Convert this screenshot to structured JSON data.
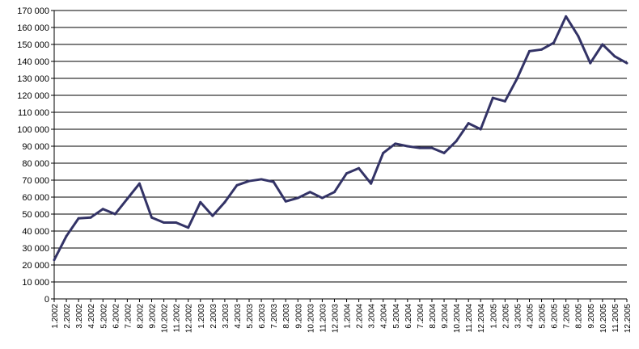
{
  "chart_data": {
    "type": "line",
    "title": "",
    "xlabel": "",
    "ylabel": "",
    "ylim": [
      0,
      170000
    ],
    "yticks": [
      0,
      10000,
      20000,
      30000,
      40000,
      50000,
      60000,
      70000,
      80000,
      90000,
      100000,
      110000,
      120000,
      130000,
      140000,
      150000,
      160000,
      170000
    ],
    "ytick_labels": [
      "0",
      "10 000",
      "20 000",
      "30 000",
      "40 000",
      "50 000",
      "60 000",
      "70 000",
      "80 000",
      "90 000",
      "100 000",
      "110 000",
      "120 000",
      "130 000",
      "140 000",
      "150 000",
      "160 000",
      "170 000"
    ],
    "grid": true,
    "line_color": "#333366",
    "categories": [
      "1.2002",
      "2.2002",
      "3.2002",
      "4.2002",
      "5.2002",
      "6.2002",
      "7.2002",
      "8.2002",
      "9.2002",
      "10.2002",
      "11.2002",
      "12.2002",
      "1.2003",
      "2.2003",
      "3.2003",
      "4.2003",
      "5.2003",
      "6.2003",
      "7.2003",
      "8.2003",
      "9.2003",
      "10.2003",
      "11.2003",
      "12.2003",
      "1.2004",
      "2.2004",
      "3.2004",
      "4.2004",
      "5.2004",
      "6.2004",
      "7.2004",
      "8.2004",
      "9.2004",
      "10.2004",
      "11.2004",
      "12.2004",
      "1.2005",
      "2.2005",
      "3.2005",
      "4.2005",
      "5.2005",
      "6.2005",
      "7.2005",
      "8.2005",
      "9.2005",
      "10.2005",
      "11.2005",
      "12.2005"
    ],
    "values": [
      23000,
      37000,
      47500,
      48000,
      53000,
      50000,
      59000,
      68000,
      48000,
      45000,
      45000,
      42000,
      57000,
      49000,
      57000,
      67000,
      69500,
      70500,
      69000,
      57500,
      59500,
      63000,
      59500,
      63000,
      74000,
      77000,
      68000,
      86000,
      91500,
      90000,
      89000,
      89000,
      86000,
      93000,
      103500,
      100000,
      118500,
      116500,
      130000,
      146000,
      147000,
      151000,
      166500,
      155000,
      139000,
      150000,
      143000,
      139000
    ]
  }
}
